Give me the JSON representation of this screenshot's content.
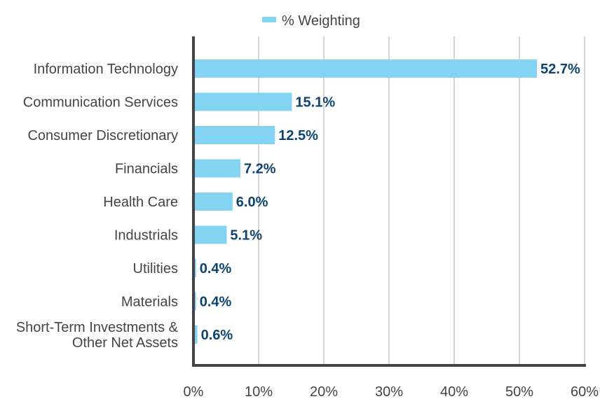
{
  "chart_data": {
    "type": "bar",
    "orientation": "horizontal",
    "categories": [
      "Information Technology",
      "Communication Services",
      "Consumer Discretionary",
      "Financials",
      "Health Care",
      "Industrials",
      "Utilities",
      "Materials",
      "Short-Term Investments & Other Net Assets"
    ],
    "category_lines": [
      [
        "Information Technology"
      ],
      [
        "Communication Services"
      ],
      [
        "Consumer Discretionary"
      ],
      [
        "Financials"
      ],
      [
        "Health Care"
      ],
      [
        "Industrials"
      ],
      [
        "Utilities"
      ],
      [
        "Materials"
      ],
      [
        "Short-Term Investments &",
        "Other Net Assets"
      ]
    ],
    "series": [
      {
        "name": "% Weighting",
        "values": [
          52.7,
          15.1,
          12.5,
          7.2,
          6.0,
          5.1,
          0.4,
          0.4,
          0.6
        ],
        "labels": [
          "52.7%",
          "15.1%",
          "12.5%",
          "7.2%",
          "6.0%",
          "5.1%",
          "0.4%",
          "0.4%",
          "0.6%"
        ]
      }
    ],
    "xlim": [
      0,
      60
    ],
    "xticks": [
      0,
      10,
      20,
      30,
      40,
      50,
      60
    ],
    "xtick_labels": [
      "0%",
      "10%",
      "20%",
      "30%",
      "40%",
      "50%",
      "60%"
    ],
    "grid": "vertical",
    "legend": {
      "position": "top",
      "label": "% Weighting"
    },
    "colors": {
      "bar": "#83d3f2",
      "data_label": "#0e4470",
      "grid": "#d4d4d4",
      "axis": "#444444",
      "text": "#444444"
    }
  }
}
